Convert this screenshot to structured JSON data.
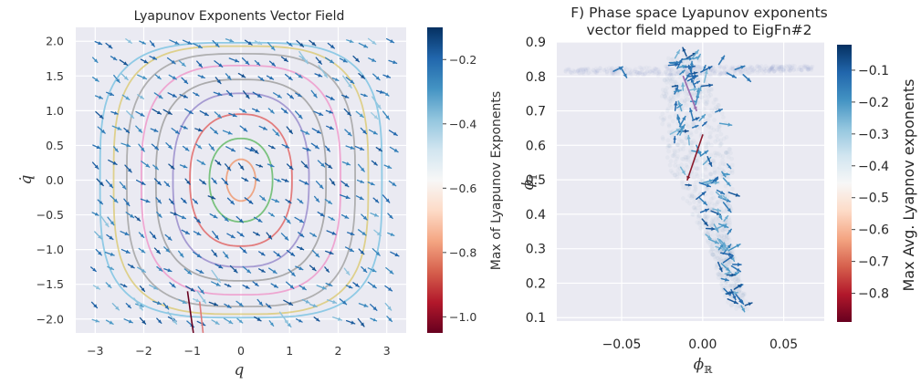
{
  "chart_data": [
    {
      "type": "quiver",
      "title": "Lyapunov Exponents Vector Field",
      "xlabel": "q",
      "ylabel": "q̇",
      "xlim": [
        -3.4,
        3.4
      ],
      "ylim": [
        -2.2,
        2.2
      ],
      "x_ticks": [
        "−3",
        "−2",
        "−1",
        "0",
        "1",
        "2",
        "3"
      ],
      "x_tick_values": [
        -3,
        -2,
        -1,
        0,
        1,
        2,
        3
      ],
      "y_ticks": [
        "2.0",
        "1.5",
        "1.0",
        "0.5",
        "0.0",
        "−0.5",
        "−1.0",
        "−1.5",
        "−2.0"
      ],
      "y_tick_values": [
        2.0,
        1.5,
        1.0,
        0.5,
        0.0,
        -0.5,
        -1.0,
        -1.5,
        -2.0
      ],
      "grid": true,
      "background": "#eaeaf2",
      "colorbar": {
        "label": "Max of Lyapunov Exponents",
        "range": [
          -1.05,
          -0.1
        ],
        "ticks": [
          "−0.2",
          "−0.4",
          "−0.6",
          "−0.8",
          "−1.0"
        ],
        "tick_values": [
          -0.2,
          -0.4,
          -0.6,
          -0.8,
          -1.0
        ],
        "colormap": "RdBu"
      },
      "grid_x": [
        -3.0,
        -2.7,
        -2.4,
        -2.1,
        -1.8,
        -1.5,
        -1.2,
        -0.9,
        -0.6,
        -0.3,
        0.0,
        0.3,
        0.6,
        0.9,
        1.2,
        1.5,
        1.8,
        2.1,
        2.4,
        2.7,
        3.0
      ],
      "grid_y": [
        2.0,
        1.75,
        1.5,
        1.25,
        1.0,
        0.75,
        0.5,
        0.25,
        0.0,
        -0.25,
        -0.5,
        -0.75,
        -1.0,
        -1.25,
        -1.5,
        -1.75,
        -2.0
      ],
      "contours": [
        {
          "a": 0.3,
          "b": 0.3,
          "color": "#ee9a72"
        },
        {
          "a": 0.65,
          "b": 0.6,
          "color": "#66bb6a"
        },
        {
          "a": 1.05,
          "b": 0.95,
          "color": "#e06868"
        },
        {
          "a": 1.4,
          "b": 1.25,
          "color": "#9a8dcc"
        },
        {
          "a": 1.75,
          "b": 1.45,
          "color": "#a0a0a0"
        },
        {
          "a": 2.05,
          "b": 1.65,
          "color": "#ee9acb"
        },
        {
          "a": 2.35,
          "b": 1.82,
          "color": "#a5a5a5"
        },
        {
          "a": 2.62,
          "b": 1.93,
          "color": "#dccb7a"
        },
        {
          "a": 2.9,
          "b": 1.98,
          "color": "#7fc4e3"
        }
      ]
    },
    {
      "type": "scatter_quiver",
      "title": "F) Phase space Lyapunov exponents",
      "title_line2": "vector field mapped to EigFn#2",
      "xlabel": "ϕ",
      "xlabel_sub": "ℝ",
      "ylabel": "ϕ",
      "ylabel_sub": "𝕀",
      "xlim": [
        -0.09,
        0.075
      ],
      "ylim": [
        0.09,
        0.9
      ],
      "x_ticks": [
        "−0.05",
        "0.00",
        "0.05"
      ],
      "x_tick_values": [
        -0.05,
        0.0,
        0.05
      ],
      "y_ticks": [
        "0.9",
        "0.8",
        "0.7",
        "0.6",
        "0.5",
        "0.4",
        "0.3",
        "0.2",
        "0.1"
      ],
      "y_tick_values": [
        0.9,
        0.8,
        0.7,
        0.6,
        0.5,
        0.4,
        0.3,
        0.2,
        0.1
      ],
      "grid": true,
      "background": "#eaeaf2",
      "colorbar": {
        "label": "Max Avg. Lyapnov exponents",
        "range": [
          -0.89,
          -0.02
        ],
        "ticks": [
          "−0.1",
          "−0.2",
          "−0.3",
          "−0.4",
          "−0.5",
          "−0.6",
          "−0.7",
          "−0.8"
        ],
        "tick_values": [
          -0.1,
          -0.2,
          -0.3,
          -0.4,
          -0.5,
          -0.6,
          -0.7,
          -0.8
        ],
        "colormap": "RdBu"
      }
    }
  ]
}
